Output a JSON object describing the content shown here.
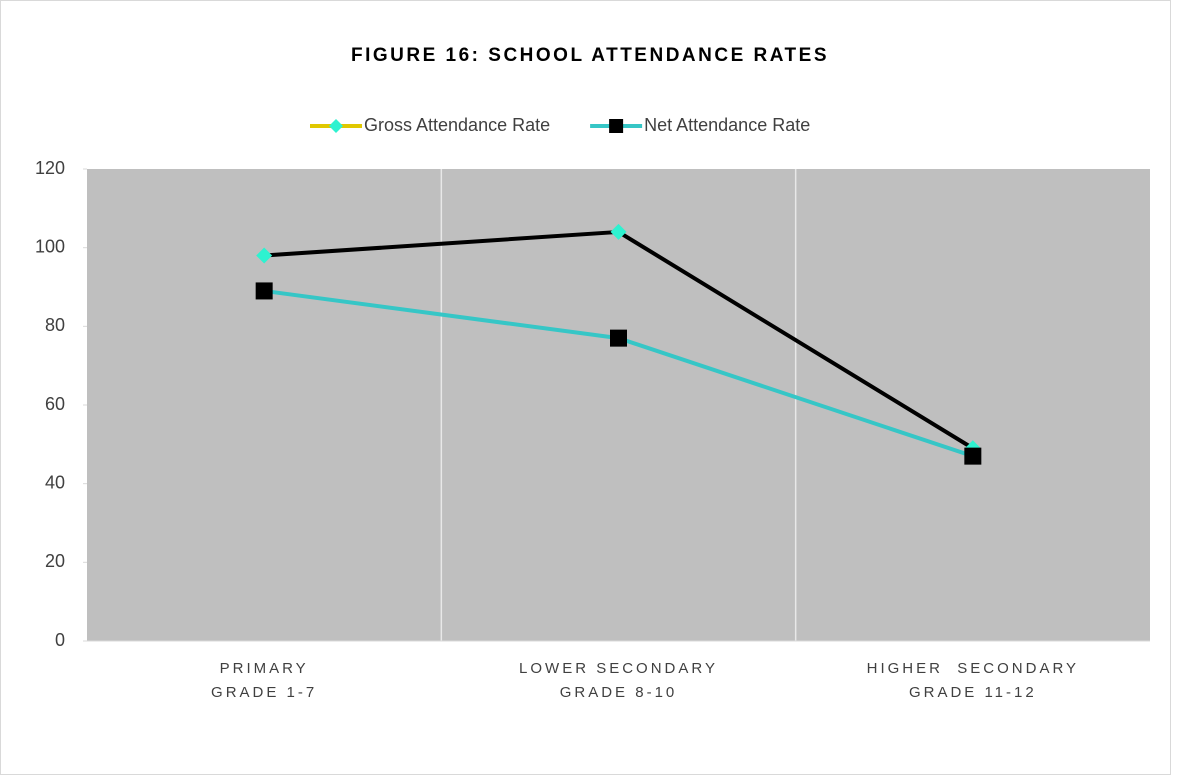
{
  "chart_data": {
    "type": "line",
    "title": "FIGURE 16: SCHOOL ATTENDANCE RATES",
    "categories": [
      "PRIMARY\nGRADE 1-7",
      "LOWER SECONDARY\nGRADE 8-10",
      "HIGHER  SECONDARY\nGRADE 11-12"
    ],
    "series": [
      {
        "name": "Gross Attendance Rate",
        "color": "#000000",
        "marker": "diamond",
        "marker_color": "#2ef2d0",
        "legend_line_color": "#e0c800",
        "values": [
          98,
          104,
          49
        ]
      },
      {
        "name": "Net Attendance Rate",
        "color": "#36c6c6",
        "marker": "square",
        "marker_color": "#000000",
        "legend_line_color": "#36c6c6",
        "values": [
          89,
          77,
          47
        ]
      }
    ],
    "ylim": [
      0,
      120
    ],
    "yticks": [
      0,
      20,
      40,
      60,
      80,
      100,
      120
    ],
    "grid": true,
    "plot_background": "#bfbfbf",
    "legend": "top"
  }
}
